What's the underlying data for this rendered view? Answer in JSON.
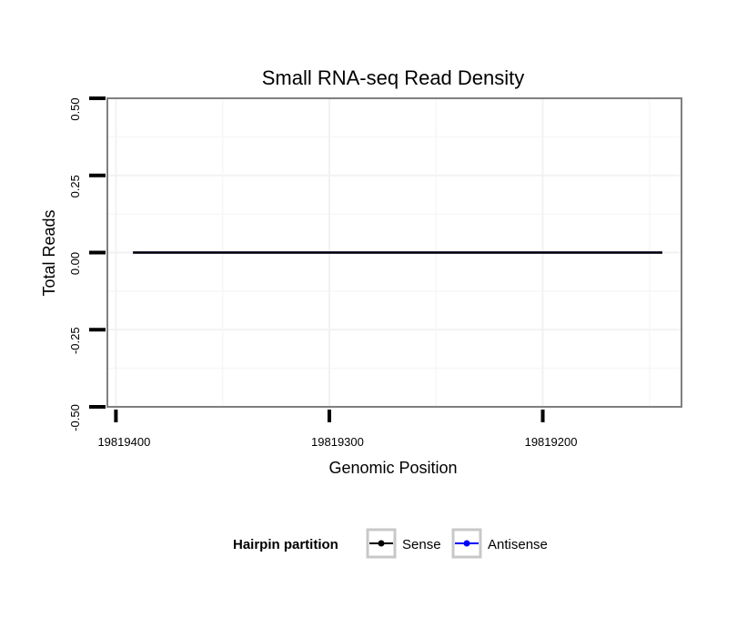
{
  "chart_data": {
    "type": "line",
    "title": "Small RNA-seq Read Density",
    "xlabel": "Genomic Position",
    "ylabel": "Total Reads",
    "xlim": [
      19819404,
      19819135
    ],
    "ylim": [
      -0.5,
      0.5
    ],
    "x_reversed": true,
    "x_ticks": [
      19819400,
      19819300,
      19819200
    ],
    "x_tick_labels": [
      "19819400",
      "19819300",
      "19819200"
    ],
    "y_ticks": [
      -0.5,
      -0.25,
      0,
      0.25,
      0.5
    ],
    "y_tick_labels": [
      "-0.50",
      "-0.25",
      "0.00",
      "0.25",
      "0.50"
    ],
    "grid": true,
    "legend": {
      "title": "Hairpin partition",
      "position": "bottom"
    },
    "series": [
      {
        "name": "Sense",
        "color": "#000000",
        "x": [
          19819392,
          19819144
        ],
        "y": [
          0,
          0
        ]
      },
      {
        "name": "Antisense",
        "color": "#0000ff",
        "x": [
          19819392,
          19819144
        ],
        "y": [
          0,
          0
        ]
      }
    ]
  }
}
